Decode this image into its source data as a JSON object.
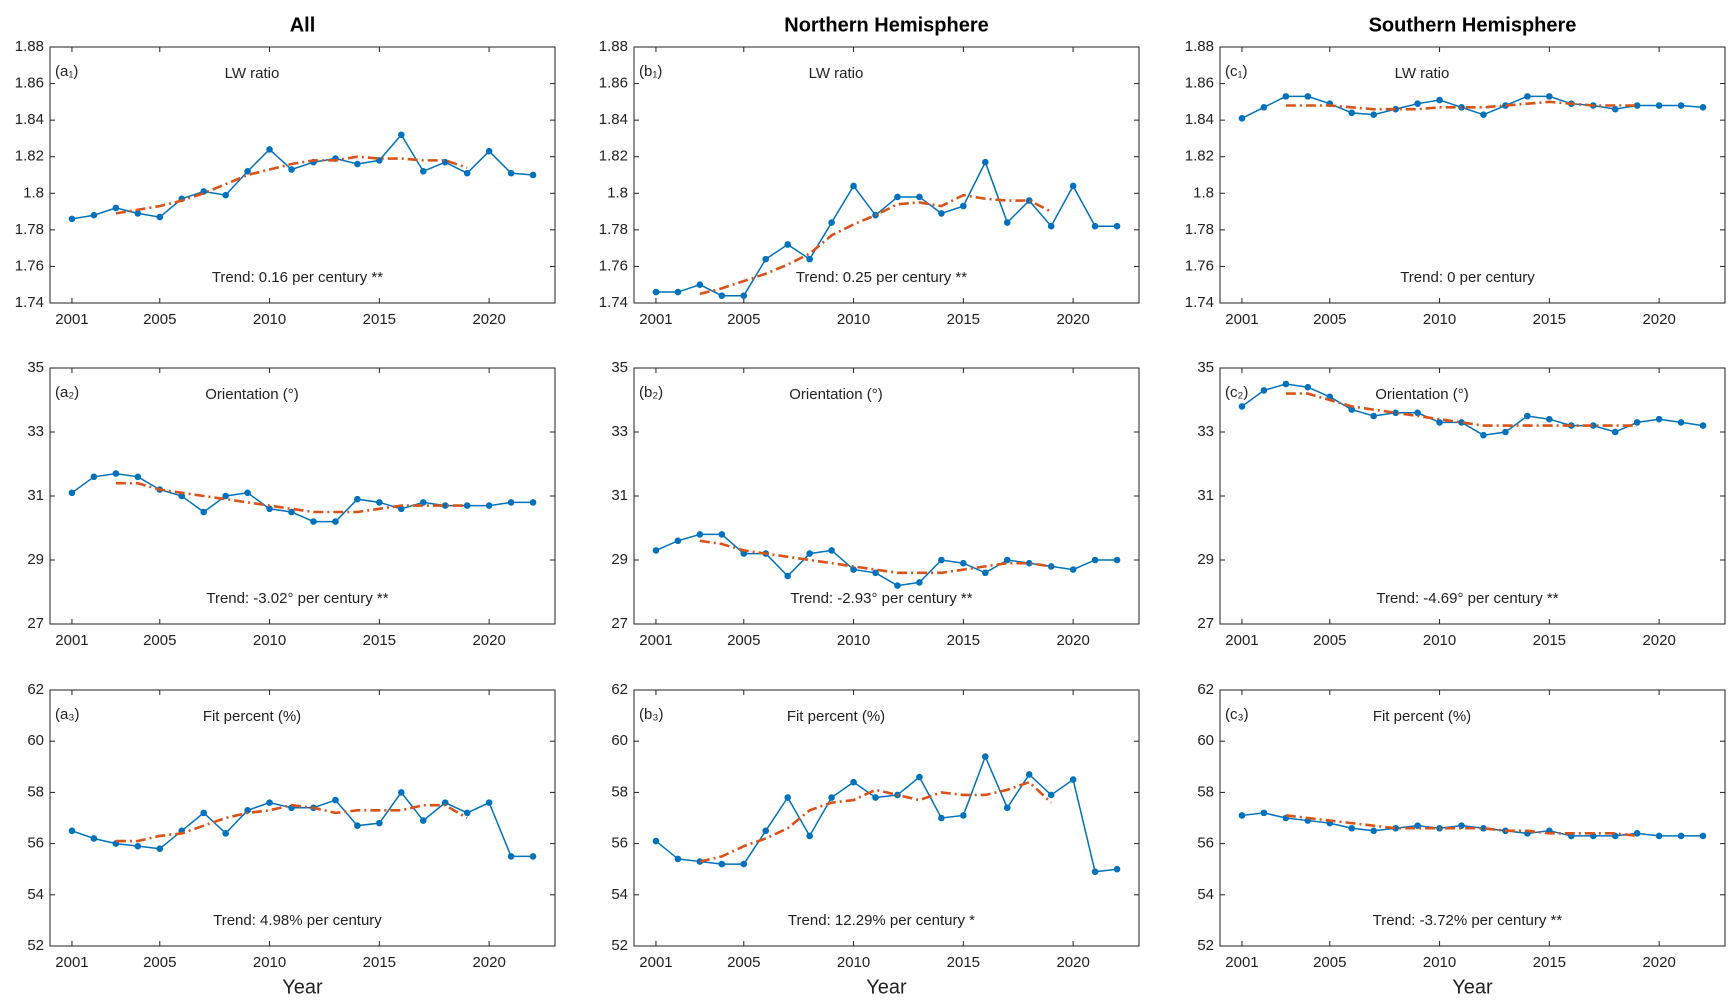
{
  "chart_data": [
    {
      "type": "line",
      "title": "All",
      "panel_label": "(a₁)",
      "subtitle": "LW ratio",
      "annotation": "Trend: 0.16 per century **",
      "x": [
        2001,
        2002,
        2003,
        2004,
        2005,
        2006,
        2007,
        2008,
        2009,
        2010,
        2011,
        2012,
        2013,
        2014,
        2015,
        2016,
        2017,
        2018,
        2019,
        2020,
        2021,
        2022
      ],
      "series": [
        {
          "color": "#0072bd",
          "line_style": "solid",
          "markers": true,
          "values": [
            1.786,
            1.788,
            1.792,
            1.789,
            1.787,
            1.797,
            1.801,
            1.799,
            1.812,
            1.824,
            1.813,
            1.817,
            1.819,
            1.816,
            1.818,
            1.832,
            1.812,
            1.817,
            1.811,
            1.823,
            1.811,
            1.81
          ]
        },
        {
          "color": "#d95319",
          "line_style": "dash-dot",
          "markers": false,
          "values": [
            null,
            null,
            1.789,
            1.791,
            1.793,
            1.796,
            1.8,
            1.805,
            1.81,
            1.813,
            1.816,
            1.818,
            1.818,
            1.82,
            1.819,
            1.819,
            1.818,
            1.818,
            1.814,
            null,
            null,
            null
          ]
        }
      ],
      "xlim": [
        2000,
        2023
      ],
      "xticks": [
        2001,
        2005,
        2010,
        2015,
        2020
      ],
      "ylim": [
        1.74,
        1.88
      ],
      "yticks": [
        1.74,
        1.76,
        1.78,
        1.8,
        1.82,
        1.84,
        1.86,
        1.88
      ]
    },
    {
      "type": "line",
      "title": "Northern Hemisphere",
      "panel_label": "(b₁)",
      "subtitle": "LW ratio",
      "annotation": "Trend: 0.25 per century **",
      "x": [
        2001,
        2002,
        2003,
        2004,
        2005,
        2006,
        2007,
        2008,
        2009,
        2010,
        2011,
        2012,
        2013,
        2014,
        2015,
        2016,
        2017,
        2018,
        2019,
        2020,
        2021,
        2022
      ],
      "series": [
        {
          "color": "#0072bd",
          "line_style": "solid",
          "markers": true,
          "values": [
            1.746,
            1.746,
            1.75,
            1.744,
            1.744,
            1.764,
            1.772,
            1.764,
            1.784,
            1.804,
            1.788,
            1.798,
            1.798,
            1.789,
            1.793,
            1.817,
            1.784,
            1.796,
            1.782,
            1.804,
            1.782,
            1.782
          ]
        },
        {
          "color": "#d95319",
          "line_style": "dash-dot",
          "markers": false,
          "values": [
            null,
            null,
            1.745,
            1.748,
            1.752,
            1.756,
            1.761,
            1.767,
            1.777,
            1.783,
            1.788,
            1.794,
            1.795,
            1.793,
            1.799,
            1.797,
            1.796,
            1.796,
            1.79,
            null,
            null,
            null
          ]
        }
      ],
      "xlim": [
        2000,
        2023
      ],
      "xticks": [
        2001,
        2005,
        2010,
        2015,
        2020
      ],
      "ylim": [
        1.74,
        1.88
      ],
      "yticks": [
        1.74,
        1.76,
        1.78,
        1.8,
        1.82,
        1.84,
        1.86,
        1.88
      ]
    },
    {
      "type": "line",
      "title": "Southern Hemisphere",
      "panel_label": "(c₁)",
      "subtitle": "LW ratio",
      "annotation": "Trend: 0 per century",
      "x": [
        2001,
        2002,
        2003,
        2004,
        2005,
        2006,
        2007,
        2008,
        2009,
        2010,
        2011,
        2012,
        2013,
        2014,
        2015,
        2016,
        2017,
        2018,
        2019,
        2020,
        2021,
        2022
      ],
      "series": [
        {
          "color": "#0072bd",
          "line_style": "solid",
          "markers": true,
          "values": [
            1.841,
            1.847,
            1.853,
            1.853,
            1.849,
            1.844,
            1.843,
            1.846,
            1.849,
            1.851,
            1.847,
            1.843,
            1.848,
            1.853,
            1.853,
            1.849,
            1.848,
            1.846,
            1.848,
            1.848,
            1.848,
            1.847
          ]
        },
        {
          "color": "#d95319",
          "line_style": "dash-dot",
          "markers": false,
          "values": [
            null,
            null,
            1.848,
            1.848,
            1.848,
            1.847,
            1.846,
            1.846,
            1.846,
            1.847,
            1.847,
            1.847,
            1.848,
            1.849,
            1.85,
            1.849,
            1.848,
            1.848,
            1.848,
            null,
            null,
            null
          ]
        }
      ],
      "xlim": [
        2000,
        2023
      ],
      "xticks": [
        2001,
        2005,
        2010,
        2015,
        2020
      ],
      "ylim": [
        1.74,
        1.88
      ],
      "yticks": [
        1.74,
        1.76,
        1.78,
        1.8,
        1.82,
        1.84,
        1.86,
        1.88
      ]
    },
    {
      "type": "line",
      "panel_label": "(a₂)",
      "subtitle": "Orientation (°)",
      "annotation": "Trend: -3.02° per century **",
      "x": [
        2001,
        2002,
        2003,
        2004,
        2005,
        2006,
        2007,
        2008,
        2009,
        2010,
        2011,
        2012,
        2013,
        2014,
        2015,
        2016,
        2017,
        2018,
        2019,
        2020,
        2021,
        2022
      ],
      "series": [
        {
          "color": "#0072bd",
          "line_style": "solid",
          "markers": true,
          "values": [
            31.1,
            31.6,
            31.7,
            31.6,
            31.2,
            31.0,
            30.5,
            31.0,
            31.1,
            30.6,
            30.5,
            30.2,
            30.2,
            30.9,
            30.8,
            30.6,
            30.8,
            30.7,
            30.7,
            30.7,
            30.8,
            30.8
          ]
        },
        {
          "color": "#d95319",
          "line_style": "dash-dot",
          "markers": false,
          "values": [
            null,
            null,
            31.4,
            31.4,
            31.2,
            31.1,
            31.0,
            30.9,
            30.8,
            30.7,
            30.6,
            30.5,
            30.5,
            30.5,
            30.6,
            30.7,
            30.7,
            30.7,
            30.7,
            null,
            null,
            null
          ]
        }
      ],
      "xlim": [
        2000,
        2023
      ],
      "xticks": [
        2001,
        2005,
        2010,
        2015,
        2020
      ],
      "ylim": [
        27,
        35
      ],
      "yticks": [
        27,
        29,
        31,
        33,
        35
      ]
    },
    {
      "type": "line",
      "panel_label": "(b₂)",
      "subtitle": "Orientation (°)",
      "annotation": "Trend: -2.93° per century **",
      "x": [
        2001,
        2002,
        2003,
        2004,
        2005,
        2006,
        2007,
        2008,
        2009,
        2010,
        2011,
        2012,
        2013,
        2014,
        2015,
        2016,
        2017,
        2018,
        2019,
        2020,
        2021,
        2022
      ],
      "series": [
        {
          "color": "#0072bd",
          "line_style": "solid",
          "markers": true,
          "values": [
            29.3,
            29.6,
            29.8,
            29.8,
            29.2,
            29.2,
            28.5,
            29.2,
            29.3,
            28.7,
            28.6,
            28.2,
            28.3,
            29.0,
            28.9,
            28.6,
            29.0,
            28.9,
            28.8,
            28.7,
            29.0,
            29.0
          ]
        },
        {
          "color": "#d95319",
          "line_style": "dash-dot",
          "markers": false,
          "values": [
            null,
            null,
            29.6,
            29.5,
            29.3,
            29.2,
            29.1,
            29.0,
            28.9,
            28.8,
            28.7,
            28.6,
            28.6,
            28.6,
            28.7,
            28.8,
            28.9,
            28.9,
            28.8,
            null,
            null,
            null
          ]
        }
      ],
      "xlim": [
        2000,
        2023
      ],
      "xticks": [
        2001,
        2005,
        2010,
        2015,
        2020
      ],
      "ylim": [
        27,
        35
      ],
      "yticks": [
        27,
        29,
        31,
        33,
        35
      ]
    },
    {
      "type": "line",
      "panel_label": "(c₂)",
      "subtitle": "Orientation (°)",
      "annotation": "Trend: -4.69° per century **",
      "x": [
        2001,
        2002,
        2003,
        2004,
        2005,
        2006,
        2007,
        2008,
        2009,
        2010,
        2011,
        2012,
        2013,
        2014,
        2015,
        2016,
        2017,
        2018,
        2019,
        2020,
        2021,
        2022
      ],
      "series": [
        {
          "color": "#0072bd",
          "line_style": "solid",
          "markers": true,
          "values": [
            33.8,
            34.3,
            34.5,
            34.4,
            34.1,
            33.7,
            33.5,
            33.6,
            33.6,
            33.3,
            33.3,
            32.9,
            33.0,
            33.5,
            33.4,
            33.2,
            33.2,
            33.0,
            33.3,
            33.4,
            33.3,
            33.2
          ]
        },
        {
          "color": "#d95319",
          "line_style": "dash-dot",
          "markers": false,
          "values": [
            null,
            null,
            34.2,
            34.2,
            34.0,
            33.8,
            33.7,
            33.6,
            33.5,
            33.4,
            33.3,
            33.2,
            33.2,
            33.2,
            33.2,
            33.2,
            33.2,
            33.2,
            33.2,
            null,
            null,
            null
          ]
        }
      ],
      "xlim": [
        2000,
        2023
      ],
      "xticks": [
        2001,
        2005,
        2010,
        2015,
        2020
      ],
      "ylim": [
        27,
        35
      ],
      "yticks": [
        27,
        29,
        31,
        33,
        35
      ]
    },
    {
      "type": "line",
      "panel_label": "(a₃)",
      "subtitle": "Fit percent (%)",
      "annotation": "Trend: 4.98% per century",
      "xlabel": "Year",
      "x": [
        2001,
        2002,
        2003,
        2004,
        2005,
        2006,
        2007,
        2008,
        2009,
        2010,
        2011,
        2012,
        2013,
        2014,
        2015,
        2016,
        2017,
        2018,
        2019,
        2020,
        2021,
        2022
      ],
      "series": [
        {
          "color": "#0072bd",
          "line_style": "solid",
          "markers": true,
          "values": [
            56.5,
            56.2,
            56.0,
            55.9,
            55.8,
            56.5,
            57.2,
            56.4,
            57.3,
            57.6,
            57.4,
            57.4,
            57.7,
            56.7,
            56.8,
            58.0,
            56.9,
            57.6,
            57.2,
            57.6,
            55.5,
            55.5
          ]
        },
        {
          "color": "#d95319",
          "line_style": "dash-dot",
          "markers": false,
          "values": [
            null,
            null,
            56.1,
            56.1,
            56.3,
            56.4,
            56.7,
            57.0,
            57.2,
            57.3,
            57.5,
            57.4,
            57.2,
            57.3,
            57.3,
            57.3,
            57.5,
            57.5,
            57.0,
            null,
            null,
            null
          ]
        }
      ],
      "xlim": [
        2000,
        2023
      ],
      "xticks": [
        2001,
        2005,
        2010,
        2015,
        2020
      ],
      "ylim": [
        52,
        62
      ],
      "yticks": [
        52,
        54,
        56,
        58,
        60,
        62
      ]
    },
    {
      "type": "line",
      "panel_label": "(b₃)",
      "subtitle": "Fit percent (%)",
      "annotation": "Trend: 12.29% per century *",
      "xlabel": "Year",
      "x": [
        2001,
        2002,
        2003,
        2004,
        2005,
        2006,
        2007,
        2008,
        2009,
        2010,
        2011,
        2012,
        2013,
        2014,
        2015,
        2016,
        2017,
        2018,
        2019,
        2020,
        2021,
        2022
      ],
      "series": [
        {
          "color": "#0072bd",
          "line_style": "solid",
          "markers": true,
          "values": [
            56.1,
            55.4,
            55.3,
            55.2,
            55.2,
            56.5,
            57.8,
            56.3,
            57.8,
            58.4,
            57.8,
            57.9,
            58.6,
            57.0,
            57.1,
            59.4,
            57.4,
            58.7,
            57.9,
            58.5,
            54.9,
            55.0
          ]
        },
        {
          "color": "#d95319",
          "line_style": "dash-dot",
          "markers": false,
          "values": [
            null,
            null,
            55.3,
            55.5,
            55.9,
            56.2,
            56.6,
            57.3,
            57.6,
            57.7,
            58.1,
            57.9,
            57.7,
            58.0,
            57.9,
            57.9,
            58.1,
            58.4,
            57.6,
            null,
            null,
            null
          ]
        }
      ],
      "xlim": [
        2000,
        2023
      ],
      "xticks": [
        2001,
        2005,
        2010,
        2015,
        2020
      ],
      "ylim": [
        52,
        62
      ],
      "yticks": [
        52,
        54,
        56,
        58,
        60,
        62
      ]
    },
    {
      "type": "line",
      "panel_label": "(c₃)",
      "subtitle": "Fit percent (%)",
      "annotation": "Trend: -3.72% per century **",
      "xlabel": "Year",
      "x": [
        2001,
        2002,
        2003,
        2004,
        2005,
        2006,
        2007,
        2008,
        2009,
        2010,
        2011,
        2012,
        2013,
        2014,
        2015,
        2016,
        2017,
        2018,
        2019,
        2020,
        2021,
        2022
      ],
      "series": [
        {
          "color": "#0072bd",
          "line_style": "solid",
          "markers": true,
          "values": [
            57.1,
            57.2,
            57.0,
            56.9,
            56.8,
            56.6,
            56.5,
            56.6,
            56.7,
            56.6,
            56.7,
            56.6,
            56.5,
            56.4,
            56.5,
            56.3,
            56.3,
            56.3,
            56.4,
            56.3,
            56.3,
            56.3
          ]
        },
        {
          "color": "#d95319",
          "line_style": "dash-dot",
          "markers": false,
          "values": [
            null,
            null,
            57.1,
            57.0,
            56.9,
            56.8,
            56.7,
            56.6,
            56.6,
            56.6,
            56.6,
            56.6,
            56.5,
            56.5,
            56.4,
            56.4,
            56.4,
            56.4,
            56.3,
            null,
            null,
            null
          ]
        }
      ],
      "xlim": [
        2000,
        2023
      ],
      "xticks": [
        2001,
        2005,
        2010,
        2015,
        2020
      ],
      "ylim": [
        52,
        62
      ],
      "yticks": [
        52,
        54,
        56,
        58,
        60,
        62
      ]
    }
  ]
}
